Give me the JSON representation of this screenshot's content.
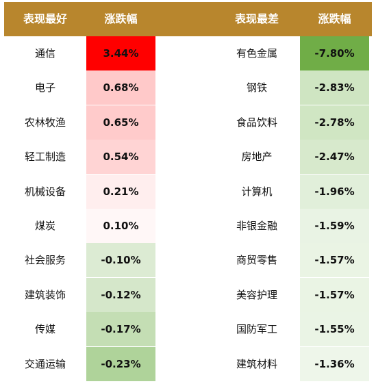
{
  "headers": {
    "best": "表现最好",
    "best_change": "涨跌幅",
    "worst": "表现最差",
    "worst_change": "涨跌幅"
  },
  "colors": {
    "header": "#B8862D",
    "header_text": "#FFFFFF",
    "up_strong": "#FF0000",
    "up_mid": "#FFC9C9",
    "up_light": "#FFF3F3",
    "down_strong": "#70AD47",
    "down_light": "#E2EFDA"
  },
  "chart_data": {
    "type": "table",
    "columns": [
      "表现最好",
      "涨跌幅",
      "表现最差",
      "涨跌幅"
    ],
    "best": [
      {
        "name": "通信",
        "change": "3.44%",
        "value": 3.44
      },
      {
        "name": "电子",
        "change": "0.68%",
        "value": 0.68
      },
      {
        "name": "农林牧渔",
        "change": "0.65%",
        "value": 0.65
      },
      {
        "name": "轻工制造",
        "change": "0.54%",
        "value": 0.54
      },
      {
        "name": "机械设备",
        "change": "0.21%",
        "value": 0.21
      },
      {
        "name": "煤炭",
        "change": "0.10%",
        "value": 0.1
      },
      {
        "name": "社会服务",
        "change": "-0.10%",
        "value": -0.1
      },
      {
        "name": "建筑装饰",
        "change": "-0.12%",
        "value": -0.12
      },
      {
        "name": "传媒",
        "change": "-0.17%",
        "value": -0.17
      },
      {
        "name": "交通运输",
        "change": "-0.23%",
        "value": -0.23
      }
    ],
    "worst": [
      {
        "name": "有色金属",
        "change": "-7.80%",
        "value": -7.8
      },
      {
        "name": "钢铁",
        "change": "-2.83%",
        "value": -2.83
      },
      {
        "name": "食品饮料",
        "change": "-2.78%",
        "value": -2.78
      },
      {
        "name": "房地产",
        "change": "-2.47%",
        "value": -2.47
      },
      {
        "name": "计算机",
        "change": "-1.96%",
        "value": -1.96
      },
      {
        "name": "非银金融",
        "change": "-1.59%",
        "value": -1.59
      },
      {
        "name": "商贸零售",
        "change": "-1.57%",
        "value": -1.57
      },
      {
        "name": "美容护理",
        "change": "-1.57%",
        "value": -1.57
      },
      {
        "name": "国防军工",
        "change": "-1.55%",
        "value": -1.55
      },
      {
        "name": "建筑材料",
        "change": "-1.36%",
        "value": -1.36
      }
    ]
  }
}
